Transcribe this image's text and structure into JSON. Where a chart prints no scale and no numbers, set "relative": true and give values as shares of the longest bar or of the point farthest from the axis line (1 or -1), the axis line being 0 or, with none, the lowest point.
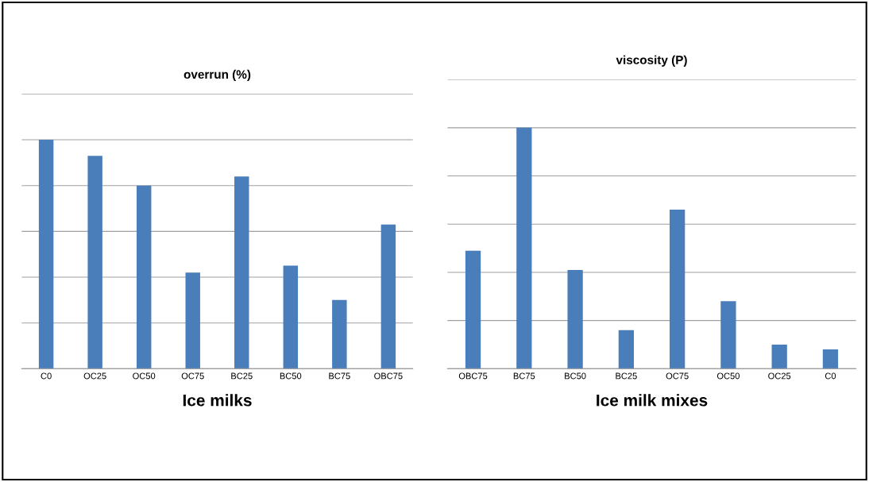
{
  "chart_data": [
    {
      "type": "bar",
      "title": "overrun (%)",
      "xlabel": "Ice milks",
      "relative": true,
      "grid": "y",
      "color": "#4a7ebb",
      "categories": [
        "C0",
        "OC25",
        "OC50",
        "OC75",
        "BC25",
        "BC50",
        "BC75",
        "OBC75"
      ],
      "values": [
        1,
        0.93,
        0.8,
        0.42,
        0.84,
        0.45,
        0.3,
        0.63
      ]
    },
    {
      "type": "bar",
      "title": "viscosity (P)",
      "xlabel": "Ice milk mixes",
      "relative": true,
      "grid": "y",
      "color": "#4a7ebb",
      "categories": [
        "OBC75",
        "BC75",
        "BC50",
        "BC25",
        "OC75",
        "OC50",
        "OC25",
        "C0"
      ],
      "values": [
        0.49,
        1,
        0.41,
        0.16,
        0.66,
        0.28,
        0.1,
        0.08
      ]
    }
  ]
}
